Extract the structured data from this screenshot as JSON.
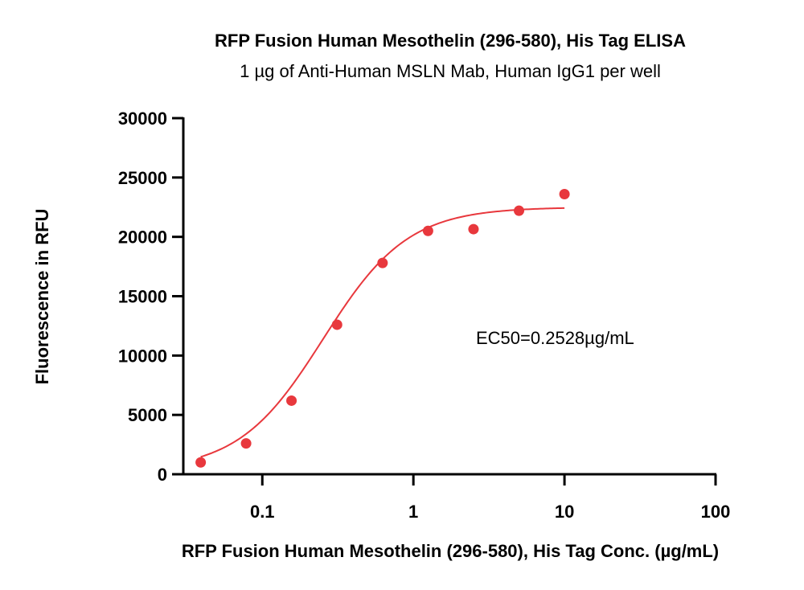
{
  "chart_data": {
    "type": "scatter",
    "title": "RFP Fusion Human Mesothelin (296-580), His Tag ELISA",
    "subtitle": "1 µg of Anti-Human MSLN Mab, Human IgG1 per well",
    "xlabel": "RFP Fusion Human Mesothelin (296-580), His Tag Conc. (µg/mL)",
    "ylabel": "Fluorescence in RFU",
    "x_scale": "log",
    "xlim": [
      0.03,
      100
    ],
    "ylim": [
      0,
      30000
    ],
    "x_ticks": [
      0.1,
      1,
      10,
      100
    ],
    "x_tick_labels": [
      "0.1",
      "1",
      "10",
      "100"
    ],
    "y_ticks": [
      0,
      5000,
      10000,
      15000,
      20000,
      25000,
      30000
    ],
    "y_tick_labels": [
      "0",
      "5000",
      "10000",
      "15000",
      "20000",
      "25000",
      "30000"
    ],
    "grid": false,
    "series": [
      {
        "x": [
          0.0391,
          0.0781,
          0.156,
          0.3125,
          0.625,
          1.25,
          2.5,
          5,
          10
        ],
        "y": [
          1000,
          2600,
          6200,
          12600,
          17800,
          20500,
          20650,
          22200,
          23600
        ]
      }
    ],
    "fit": {
      "type": "4PL",
      "bottom": 300,
      "top": 22500,
      "ec50": 0.2528,
      "hill": 1.55,
      "x_range": [
        0.0391,
        10
      ]
    },
    "annotations": [
      "EC50=0.2528µg/mL"
    ],
    "colors": {
      "marker": "#e8383d",
      "curve": "#e8383d",
      "axis": "#000000"
    }
  }
}
